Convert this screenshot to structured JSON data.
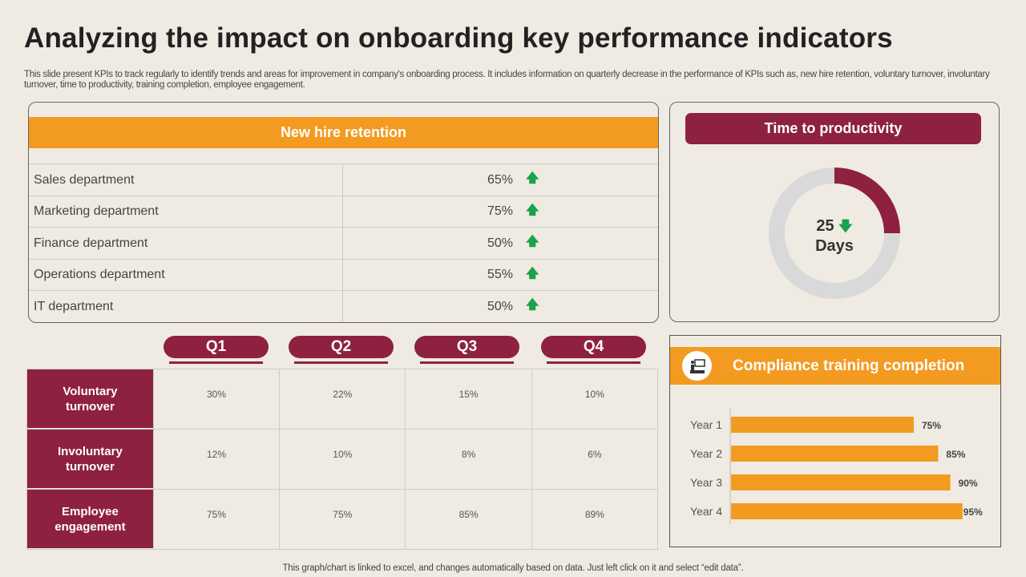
{
  "title": "Analyzing the impact on onboarding key performance indicators",
  "description": "This slide present KPIs to track regularly to identify trends and areas for improvement in company's onboarding process. It includes information on quarterly decrease in the performance of KPIs such as, new hire retention, voluntary turnover, involuntary turnover, time to productivity, training completion, employee engagement.",
  "retention": {
    "title": "New hire retention",
    "rows": [
      {
        "label": "Sales department",
        "value": "65%"
      },
      {
        "label": "Marketing department",
        "value": "75%"
      },
      {
        "label": "Finance department",
        "value": "50%"
      },
      {
        "label": "Operations department",
        "value": "55%"
      },
      {
        "label": "IT department",
        "value": "50%"
      }
    ],
    "trend_icon": "arrow-up-icon",
    "trend_color": "#1aa34a"
  },
  "productivity": {
    "title": "Time to productivity",
    "value": "25",
    "unit": "Days",
    "trend_icon": "arrow-down-icon",
    "fill_fraction": 0.25
  },
  "quarters": {
    "headers": [
      "Q1",
      "Q2",
      "Q3",
      "Q4"
    ],
    "rows": [
      {
        "label": "Voluntary turnover",
        "values": [
          "30%",
          "22%",
          "15%",
          "10%"
        ]
      },
      {
        "label": "Involuntary turnover",
        "values": [
          "12%",
          "10%",
          "8%",
          "6%"
        ]
      },
      {
        "label": "Employee engagement",
        "values": [
          "75%",
          "75%",
          "85%",
          "89%"
        ]
      }
    ]
  },
  "chart_data": [
    {
      "type": "bar",
      "orientation": "horizontal",
      "title": "Compliance training completion",
      "categories": [
        "Year 1",
        "Year 2",
        "Year 3",
        "Year 4"
      ],
      "values": [
        75,
        85,
        90,
        95
      ],
      "data_labels": [
        "75%",
        "85%",
        "90%",
        "95%"
      ],
      "xlim": [
        0,
        100
      ],
      "grid": false,
      "color": "#f39a21"
    },
    {
      "type": "pie",
      "variant": "donut",
      "values": [
        25,
        75
      ],
      "colors": [
        "#8e2140",
        "#d9d9d9"
      ],
      "center_label": "25 Days"
    }
  ],
  "colors": {
    "accent_orange": "#f39a21",
    "accent_maroon": "#8e2140",
    "background": "#efebe2"
  },
  "footer": "This graph/chart is linked to excel, and changes automatically based on data. Just left click on it and select “edit data”."
}
